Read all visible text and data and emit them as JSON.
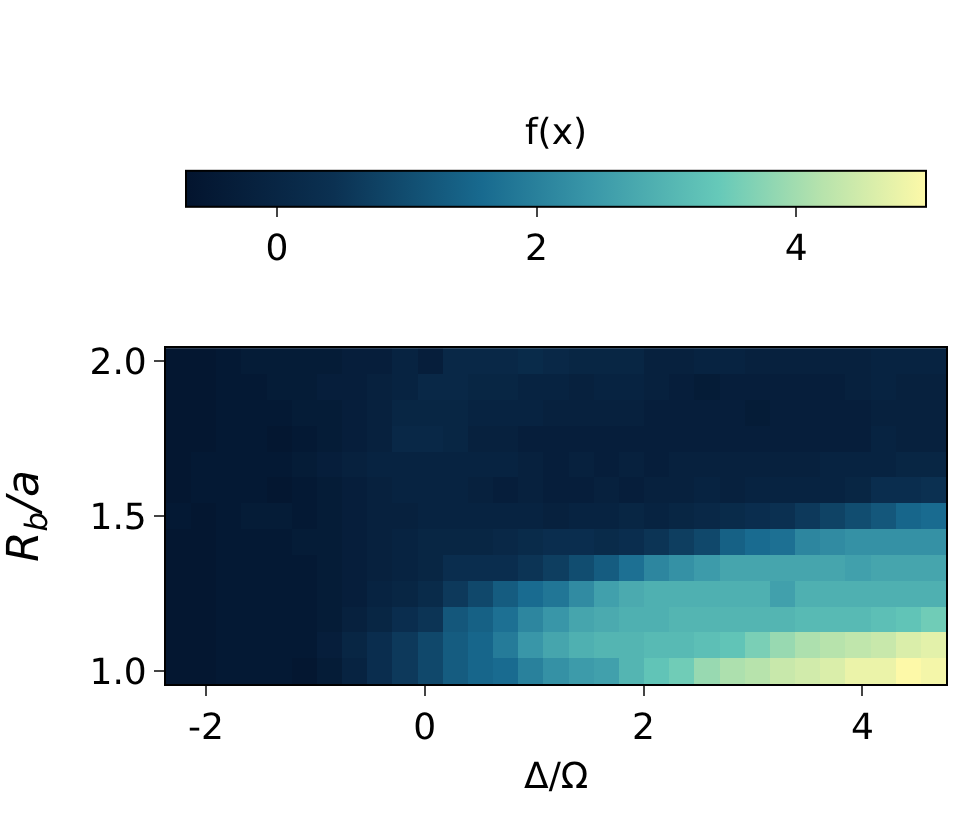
{
  "chart_data": {
    "type": "heatmap",
    "xlabel": "Δ/Ω",
    "ylabel": "R$_{b}$/a",
    "clabel": "f(x)",
    "x": [
      -2.25,
      -2.02,
      -1.79,
      -1.56,
      -1.33,
      -1.1,
      -0.87,
      -0.64,
      -0.41,
      -0.18,
      0.05,
      0.28,
      0.51,
      0.74,
      0.97,
      1.2,
      1.43,
      1.66,
      1.89,
      2.12,
      2.35,
      2.58,
      2.81,
      3.04,
      3.27,
      3.5,
      3.73,
      3.96,
      4.19,
      4.42,
      4.65
    ],
    "y": [
      2.0,
      1.917,
      1.833,
      1.75,
      1.667,
      1.583,
      1.5,
      1.417,
      1.333,
      1.25,
      1.167,
      1.083,
      1.0
    ],
    "cells": [
      [
        -0.6,
        -0.6,
        -0.5,
        -0.4,
        -0.4,
        -0.4,
        -0.4,
        -0.3,
        -0.3,
        -0.1,
        -0.3,
        0.1,
        0.1,
        0.1,
        0.2,
        0.1,
        0.0,
        0.0,
        0.0,
        -0.2,
        -0.2,
        -0.1,
        -0.1,
        -0.2,
        -0.2,
        -0.2,
        -0.2,
        -0.2,
        -0.1,
        -0.1,
        -0.1
      ],
      [
        -0.6,
        -0.6,
        -0.5,
        -0.5,
        -0.4,
        -0.4,
        -0.3,
        -0.3,
        -0.2,
        -0.1,
        0.1,
        0.1,
        0.0,
        0.0,
        -0.1,
        -0.1,
        -0.2,
        -0.1,
        -0.1,
        -0.2,
        -0.3,
        -0.4,
        -0.3,
        -0.3,
        -0.3,
        -0.3,
        -0.3,
        -0.2,
        -0.1,
        -0.2,
        -0.2
      ],
      [
        -0.6,
        -0.6,
        -0.5,
        -0.5,
        -0.5,
        -0.4,
        -0.4,
        -0.3,
        -0.2,
        0.0,
        0.0,
        0.0,
        -0.1,
        -0.1,
        -0.1,
        -0.2,
        -0.2,
        -0.2,
        -0.2,
        -0.3,
        -0.3,
        -0.3,
        -0.3,
        -0.4,
        -0.3,
        -0.3,
        -0.3,
        -0.3,
        -0.2,
        -0.2,
        -0.2
      ],
      [
        -0.6,
        -0.6,
        -0.5,
        -0.5,
        -0.6,
        -0.5,
        -0.4,
        -0.3,
        -0.2,
        0.1,
        0.1,
        0.0,
        -0.2,
        -0.2,
        -0.3,
        -0.3,
        -0.3,
        -0.3,
        -0.3,
        -0.3,
        -0.3,
        -0.3,
        -0.3,
        -0.3,
        -0.3,
        -0.3,
        -0.3,
        -0.3,
        -0.1,
        -0.2,
        -0.2
      ],
      [
        -0.6,
        -0.5,
        -0.5,
        -0.5,
        -0.5,
        -0.4,
        -0.3,
        -0.2,
        -0.1,
        -0.1,
        -0.1,
        -0.1,
        -0.1,
        -0.1,
        -0.2,
        -0.3,
        -0.2,
        -0.3,
        -0.2,
        -0.3,
        -0.2,
        -0.2,
        -0.2,
        -0.2,
        -0.2,
        -0.2,
        -0.1,
        -0.1,
        -0.1,
        0.0,
        0.0
      ],
      [
        -0.6,
        -0.5,
        -0.5,
        -0.5,
        -0.6,
        -0.5,
        -0.4,
        -0.3,
        -0.2,
        -0.1,
        -0.1,
        -0.1,
        -0.2,
        -0.3,
        -0.2,
        -0.3,
        -0.3,
        -0.2,
        -0.3,
        -0.2,
        -0.2,
        -0.1,
        -0.2,
        -0.1,
        -0.1,
        -0.1,
        -0.1,
        0.0,
        0.3,
        0.3,
        0.4
      ],
      [
        -0.5,
        -0.6,
        -0.5,
        -0.4,
        -0.4,
        -0.5,
        -0.4,
        -0.3,
        -0.2,
        -0.2,
        -0.1,
        -0.1,
        -0.1,
        -0.1,
        -0.1,
        -0.2,
        -0.1,
        -0.1,
        0.0,
        -0.1,
        0.0,
        0.1,
        0.2,
        0.3,
        0.4,
        0.6,
        0.8,
        1.0,
        1.2,
        1.5,
        1.6
      ],
      [
        -0.6,
        -0.6,
        -0.5,
        -0.5,
        -0.5,
        -0.4,
        -0.4,
        -0.3,
        -0.2,
        -0.1,
        0.0,
        0.0,
        0.0,
        0.1,
        0.2,
        0.3,
        0.3,
        0.2,
        0.3,
        0.5,
        0.7,
        0.9,
        1.4,
        1.6,
        1.7,
        2.1,
        2.2,
        2.3,
        2.3,
        2.3,
        2.3
      ],
      [
        -0.6,
        -0.6,
        -0.5,
        -0.5,
        -0.5,
        -0.5,
        -0.4,
        -0.3,
        -0.2,
        -0.1,
        0.0,
        0.3,
        0.3,
        0.3,
        0.5,
        0.7,
        1.0,
        1.3,
        1.7,
        2.1,
        2.3,
        2.5,
        2.7,
        2.7,
        2.7,
        2.7,
        2.7,
        2.6,
        2.7,
        2.7,
        2.7
      ],
      [
        -0.6,
        -0.6,
        -0.5,
        -0.5,
        -0.5,
        -0.5,
        -0.4,
        -0.3,
        -0.1,
        0.0,
        0.2,
        0.6,
        0.9,
        1.3,
        1.6,
        1.8,
        2.2,
        2.6,
        2.8,
        2.9,
        2.9,
        2.9,
        2.9,
        2.9,
        2.6,
        2.9,
        2.9,
        2.9,
        2.9,
        2.9,
        2.9
      ],
      [
        -0.6,
        -0.6,
        -0.5,
        -0.5,
        -0.5,
        -0.5,
        -0.4,
        -0.2,
        0.0,
        0.3,
        0.5,
        1.2,
        1.4,
        1.7,
        2.1,
        2.4,
        2.7,
        2.8,
        2.9,
        2.9,
        3.0,
        3.0,
        3.0,
        3.0,
        3.0,
        3.1,
        3.1,
        3.1,
        3.2,
        3.3,
        3.5
      ],
      [
        -0.6,
        -0.6,
        -0.5,
        -0.5,
        -0.5,
        -0.5,
        -0.3,
        0.0,
        0.3,
        0.6,
        0.9,
        1.3,
        1.5,
        1.9,
        2.4,
        2.7,
        2.9,
        3.0,
        3.0,
        3.1,
        3.1,
        3.2,
        3.3,
        3.6,
        3.9,
        4.1,
        4.2,
        4.3,
        4.4,
        4.6,
        4.7
      ],
      [
        -0.6,
        -0.6,
        -0.5,
        -0.5,
        -0.5,
        -0.6,
        -0.4,
        -0.1,
        0.3,
        0.6,
        0.9,
        1.3,
        1.5,
        1.6,
        2.0,
        2.3,
        2.5,
        2.6,
        3.0,
        3.3,
        3.5,
        3.9,
        4.1,
        4.2,
        4.4,
        4.5,
        4.6,
        4.8,
        4.8,
        5.0,
        4.9
      ]
    ],
    "xlim": [
      -2.365,
      4.765
    ],
    "ylim": [
      0.958,
      2.042
    ],
    "xticks": [
      -2,
      0,
      2,
      4
    ],
    "yticks": [
      {
        "value": 1,
        "label": "1.0"
      },
      {
        "value": 1.5,
        "label": "1.5"
      },
      {
        "value": 2,
        "label": "2.0"
      }
    ],
    "clim": [
      -0.7,
      5.0
    ],
    "cticks": [
      0,
      2,
      4
    ]
  }
}
